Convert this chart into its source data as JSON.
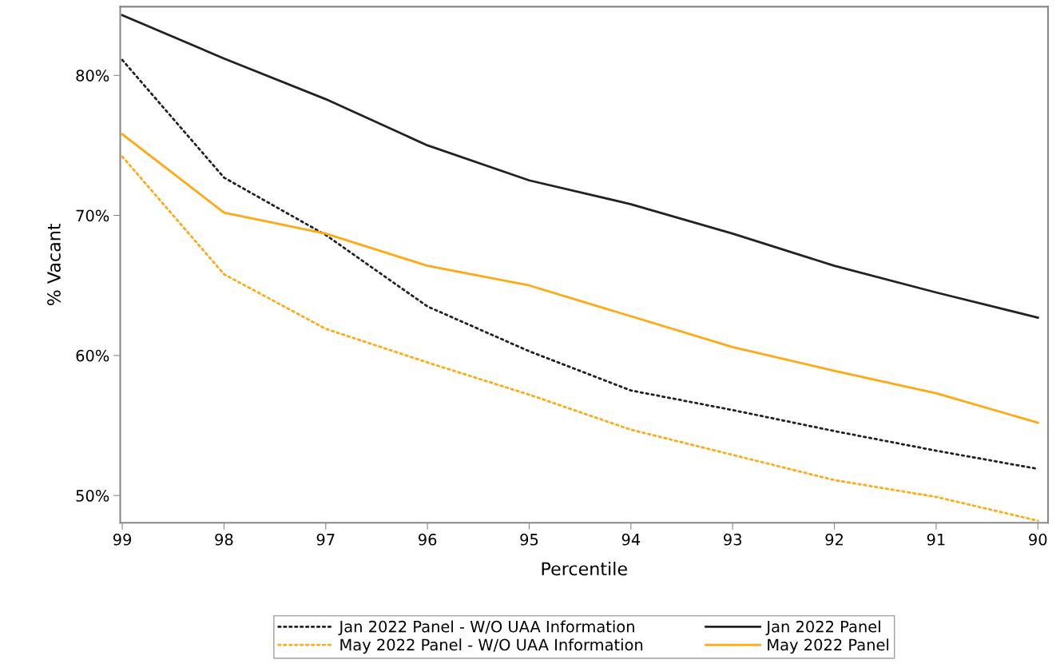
{
  "chart_data": {
    "type": "line",
    "xlabel": "Percentile",
    "ylabel": "% Vacant",
    "x": [
      99,
      98,
      97,
      96,
      95,
      94,
      93,
      92,
      91,
      90
    ],
    "xlim": [
      99.02,
      89.9
    ],
    "xticks": [
      99,
      98,
      97,
      96,
      95,
      94,
      93,
      92,
      91,
      90
    ],
    "ylim": [
      48.05,
      84.9
    ],
    "yticks": [
      {
        "value": 50,
        "label": "50%"
      },
      {
        "value": 60,
        "label": "60%"
      },
      {
        "value": 70,
        "label": "70%"
      },
      {
        "value": 80,
        "label": "80%"
      }
    ],
    "grid": false,
    "legend": "bottom",
    "marker": "none",
    "series": [
      {
        "name": "Jan 2022 Panel - W/O UAA Information",
        "color": "#222222",
        "line_style": "dotted",
        "values": [
          81.1,
          72.7,
          68.6,
          63.5,
          60.3,
          57.5,
          56.1,
          54.6,
          53.2,
          51.9
        ]
      },
      {
        "name": "May 2022 Panel - W/O UAA Information",
        "color": "#ffa914",
        "line_style": "dotted",
        "values": [
          74.2,
          65.8,
          61.9,
          59.5,
          57.2,
          54.7,
          52.9,
          51.1,
          49.9,
          48.2
        ]
      },
      {
        "name": "Jan 2022 Panel",
        "color": "#222222",
        "line_style": "solid",
        "values": [
          84.3,
          81.2,
          78.3,
          75.0,
          72.5,
          70.8,
          68.7,
          66.4,
          64.5,
          62.7
        ]
      },
      {
        "name": "May 2022 Panel",
        "color": "#ffa914",
        "line_style": "solid",
        "values": [
          75.8,
          70.2,
          68.7,
          66.4,
          65.0,
          62.8,
          60.6,
          58.9,
          57.3,
          55.2
        ]
      }
    ]
  }
}
